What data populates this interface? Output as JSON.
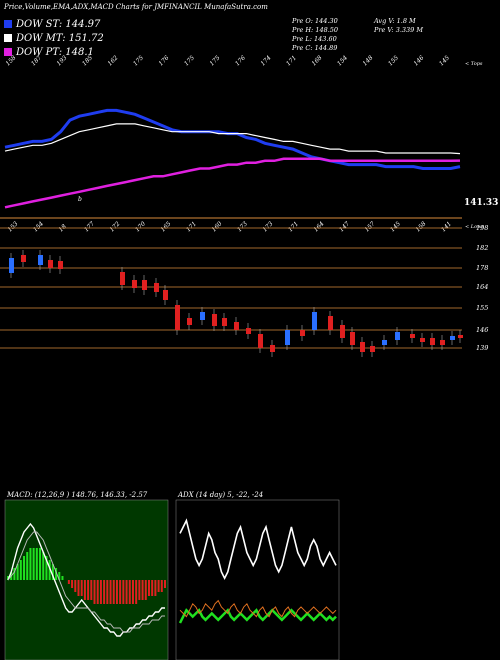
{
  "header": {
    "title": "Price,Volume,EMA,ADX,MACD Charts for JMFINANCIL",
    "site": "MunafaSutra.com"
  },
  "legend": [
    {
      "label": "DOW ST: 144.97",
      "color": "#1f3df0"
    },
    {
      "label": "DOW MT: 151.72",
      "color": "#ffffff"
    },
    {
      "label": "DOW PT: 148.1",
      "color": "#e020e0"
    }
  ],
  "info": {
    "open": "Pre  O: 144.30",
    "high": "Pre  H: 148.50",
    "low": "Pre  L: 143.60",
    "close": "Pre  C: 144.89",
    "avg_volume": "Avg V: 1.8  M",
    "pre_volume": "Pre  V: 3.339 M"
  },
  "price_panel": {
    "top_labels": [
      "158",
      "187",
      "193",
      "185",
      "162",
      "175",
      "176",
      "175",
      "175",
      "176",
      "174",
      "171",
      "168",
      "154",
      "148",
      "155",
      "146",
      "145"
    ],
    "top_right_label": "< Tops",
    "bottom_labels": [
      "153",
      "154",
      "18",
      "177",
      "172",
      "170",
      "165",
      "171",
      "160",
      "173",
      "173",
      "171",
      "164",
      "147",
      "157",
      "145",
      "158",
      "141"
    ],
    "bottom_right_label": "< Lows",
    "b_label": "b",
    "last_price": "141.33",
    "levels": [
      "198",
      "182",
      "178",
      "164",
      "155",
      "146",
      "139"
    ]
  },
  "chart_data": [
    {
      "type": "line",
      "title": "",
      "x": [
        1,
        2,
        3,
        4,
        5,
        6,
        7,
        8,
        9,
        10,
        11,
        12,
        13,
        14,
        15,
        16,
        17,
        18,
        19,
        20,
        21,
        22,
        23,
        24,
        25,
        26,
        27,
        28,
        29,
        30,
        31,
        32,
        33,
        34,
        35,
        36,
        37,
        38,
        39,
        40,
        41,
        42,
        43,
        44,
        45,
        46,
        47,
        48,
        49,
        50
      ],
      "series": [
        {
          "name": "DOW ST: 144.97",
          "values": [
            155,
            156,
            157,
            158,
            158,
            159,
            163,
            169,
            171,
            172,
            173,
            174,
            174,
            173,
            172,
            170,
            168,
            166,
            164,
            163,
            163,
            163,
            163,
            163,
            162,
            162,
            160,
            159,
            157,
            156,
            155,
            154,
            152,
            150,
            149,
            148,
            147,
            146,
            146,
            146,
            146,
            145,
            145,
            145,
            145,
            144,
            144,
            144,
            144,
            145
          ]
        },
        {
          "name": "DOW MT: 151.72",
          "values": [
            153,
            154,
            155,
            156,
            156,
            157,
            159,
            161,
            163,
            164,
            165,
            166,
            167,
            167,
            167,
            166,
            165,
            164,
            163,
            163,
            163,
            163,
            163,
            162,
            162,
            162,
            162,
            161,
            160,
            159,
            158,
            158,
            157,
            156,
            155,
            154,
            154,
            153,
            153,
            153,
            153,
            152,
            152,
            152,
            152,
            152,
            152,
            152,
            152,
            151.7
          ]
        },
        {
          "name": "DOW PT: 148.1",
          "values": [
            124,
            125,
            126,
            127,
            128,
            129,
            130,
            131,
            132,
            133,
            134,
            135,
            136,
            137,
            138,
            139,
            140,
            140,
            141,
            142,
            143,
            144,
            144,
            145,
            146,
            146,
            147,
            147,
            148,
            148,
            149,
            149,
            149,
            149,
            149,
            148,
            148,
            148,
            148,
            148,
            148,
            148,
            148,
            148,
            148,
            148,
            148,
            148,
            148,
            148.1
          ]
        }
      ],
      "ylim": [
        120,
        200
      ]
    },
    {
      "type": "line",
      "title": "MACD",
      "header_text": "MACD: (12,26,9 ) 148.76, 146.33, -2.57",
      "histogram": [
        1,
        2,
        3,
        4,
        5,
        6,
        7,
        8,
        8,
        8,
        8,
        7,
        6,
        5,
        4,
        3,
        2,
        1,
        0,
        -1,
        -2,
        -3,
        -4,
        -4,
        -5,
        -5,
        -5,
        -6,
        -6,
        -6,
        -6,
        -6,
        -6,
        -6,
        -6,
        -6,
        -6,
        -6,
        -6,
        -6,
        -6,
        -5,
        -5,
        -5,
        -4,
        -4,
        -4,
        -3,
        -3,
        -2
      ],
      "macd": [
        0,
        2,
        5,
        8,
        10,
        12,
        13,
        14,
        13,
        11,
        9,
        7,
        5,
        3,
        1,
        -1,
        -3,
        -5,
        -7,
        -8,
        -8,
        -7,
        -6,
        -5,
        -6,
        -7,
        -8,
        -9,
        -10,
        -11,
        -12,
        -12,
        -13,
        -13,
        -14,
        -14,
        -13,
        -13,
        -12,
        -12,
        -11,
        -11,
        -10,
        -10,
        -9,
        -9,
        -8,
        -8,
        -7,
        -7
      ],
      "signal": [
        0,
        1,
        2,
        4,
        6,
        8,
        10,
        11,
        12,
        12,
        11,
        10,
        8,
        6,
        4,
        2,
        0,
        -2,
        -4,
        -5,
        -6,
        -7,
        -7,
        -7,
        -7,
        -7,
        -8,
        -8,
        -9,
        -10,
        -10,
        -11,
        -11,
        -12,
        -12,
        -12,
        -13,
        -13,
        -13,
        -12,
        -12,
        -12,
        -11,
        -11,
        -11,
        -10,
        -10,
        -10,
        -9,
        -9
      ]
    },
    {
      "type": "line",
      "title": "ADX",
      "header_text": "ADX  (14 day) 5, -22, -24",
      "adx": [
        38,
        40,
        42,
        38,
        34,
        30,
        28,
        30,
        34,
        38,
        36,
        32,
        30,
        26,
        24,
        26,
        30,
        34,
        38,
        40,
        36,
        32,
        30,
        28,
        30,
        34,
        38,
        40,
        36,
        32,
        28,
        26,
        28,
        32,
        36,
        40,
        36,
        32,
        30,
        28,
        30,
        34,
        36,
        34,
        30,
        28,
        30,
        32,
        30,
        28
      ],
      "plus_di": [
        10,
        12,
        14,
        13,
        12,
        13,
        14,
        12,
        11,
        12,
        13,
        12,
        11,
        12,
        13,
        14,
        12,
        11,
        12,
        13,
        12,
        11,
        12,
        13,
        14,
        12,
        11,
        12,
        13,
        14,
        13,
        12,
        11,
        12,
        13,
        14,
        13,
        12,
        11,
        12,
        13,
        12,
        11,
        12,
        13,
        12,
        11,
        12,
        11,
        12
      ],
      "minus_di": [
        14,
        13,
        12,
        14,
        16,
        15,
        13,
        14,
        16,
        15,
        14,
        16,
        17,
        15,
        14,
        13,
        15,
        16,
        14,
        13,
        15,
        16,
        14,
        13,
        12,
        14,
        15,
        13,
        12,
        14,
        15,
        13,
        12,
        14,
        15,
        13,
        12,
        14,
        15,
        14,
        13,
        14,
        15,
        14,
        13,
        14,
        15,
        14,
        13,
        14
      ]
    }
  ]
}
